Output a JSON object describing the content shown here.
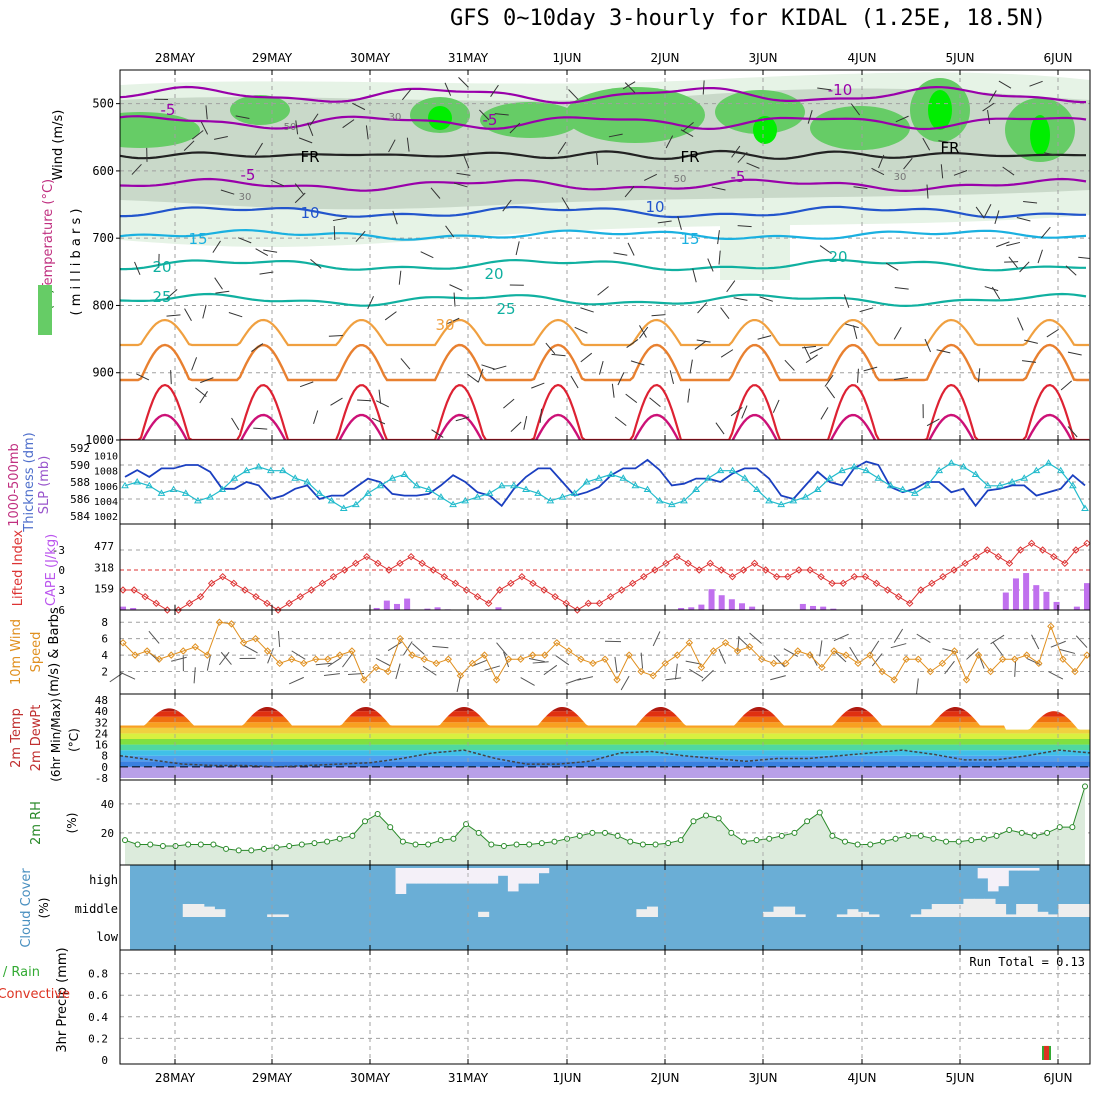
{
  "title": "GFS 0~10day 3-hourly for KIDAL (1.25E, 18.5N)",
  "dates": [
    "28MAY",
    "29MAY",
    "30MAY",
    "31MAY",
    "1JUN",
    "2JUN",
    "3JUN",
    "4JUN",
    "5JUN",
    "6JUN"
  ],
  "run_total_label": "Run Total = 0.13",
  "colors": {
    "grid": "#a0a0a0",
    "rh_light": "#e6f3e6",
    "rh_mid": "#c9d9c9",
    "rh_green": "#66cc66",
    "rh_bright": "#00ee00",
    "rh_dark": "#1a8a1a",
    "temp_neg": "#9900aa",
    "temp_cold": "#2255cc",
    "temp_cool": "#1ab0e0",
    "temp_mild": "#10b0a0",
    "temp_warm_y": "#f0a040",
    "temp_warm_o": "#e88030",
    "temp_hot": "#dd2233",
    "thickness": "#1a3fc0",
    "slp": "#22bbcc",
    "li": "#dd3333",
    "cape": "#c070ee",
    "wind10": "#e09020",
    "rh2m": "#2a8a2a",
    "cloud_sky": "#6aaed6",
    "cloud_white": "#eeeeee",
    "precip_total": "#33aa33",
    "precip_conv": "#dd3322"
  },
  "panels": {
    "upper": {
      "ylabel_wind": "Wind (m/s)",
      "ylabel_temp": "Temperature (°C)",
      "ylabel_rh": "RH (%)",
      "ylabel_mb": "( m i l l i b a r s )",
      "yticks": [
        "500",
        "600",
        "700",
        "800",
        "900",
        "1000"
      ],
      "contour_labels": [
        {
          "t": "-5"
        },
        {
          "t": "-5"
        },
        {
          "t": "-5"
        },
        {
          "t": "-5"
        },
        {
          "t": "-10"
        },
        {
          "t": "FR"
        },
        {
          "t": "FR"
        },
        {
          "t": "FR"
        },
        {
          "t": "10"
        },
        {
          "t": "10"
        },
        {
          "t": "15"
        },
        {
          "t": "15"
        },
        {
          "t": "20"
        },
        {
          "t": "20"
        },
        {
          "t": "20"
        },
        {
          "t": "25"
        },
        {
          "t": "25"
        },
        {
          "t": "30"
        },
        {
          "t": "50"
        },
        {
          "t": "30"
        },
        {
          "t": "50"
        },
        {
          "t": "30"
        },
        {
          "t": "30"
        }
      ]
    },
    "thick": {
      "ylabel1": "1000-500mb",
      "ylabel2": "Thickness (dm)",
      "ylabel3": "SLP (mb)",
      "yticks_left": [
        "592",
        "590",
        "588",
        "586",
        "584"
      ],
      "yticks_right": [
        "1010",
        "1008",
        "1006",
        "1004",
        "1002"
      ]
    },
    "li": {
      "ylabel1": "Lifted Index",
      "ylabel2": "CAPE (J/kg)",
      "yticks_left": [
        "-3",
        "0",
        "3",
        "6"
      ],
      "yticks_right": [
        "477",
        "318",
        "159"
      ]
    },
    "wind10": {
      "ylabel1": "10m Wind",
      "ylabel2": "Speed",
      "ylabel3": "(m/s) & Barbs",
      "yticks": [
        "8",
        "6",
        "4",
        "2"
      ]
    },
    "temp2m": {
      "ylabel1": "2m Temp",
      "ylabel2": "2m DewPt",
      "ylabel3": "(6hr Min/Max)",
      "ylabel4": "(°C)",
      "yticks": [
        "48",
        "40",
        "32",
        "24",
        "16",
        "8",
        "0",
        "-8"
      ]
    },
    "rh2m": {
      "ylabel1": "2m RH",
      "ylabel2": "(%)",
      "yticks": [
        "40",
        "20"
      ]
    },
    "cloud": {
      "ylabel1": "Cloud Cover",
      "ylabel2": "(%)",
      "yticks": [
        "high",
        "middle",
        "low"
      ]
    },
    "precip": {
      "ylabel1": "3hr Precip (mm)",
      "ylabel2": "Total / Rain",
      "ylabel3": "Convective",
      "yticks": [
        "0.8",
        "0.6",
        "0.4",
        "0.2",
        "0"
      ]
    }
  },
  "chart_data": {
    "type": "line",
    "title": "GFS 0~10day 3-hourly for KIDAL (1.25E, 18.5N)",
    "x": [
      "28MAY",
      "29MAY",
      "30MAY",
      "31MAY",
      "1JUN",
      "2JUN",
      "3JUN",
      "4JUN",
      "5JUN",
      "6JUN"
    ],
    "thickness_dm": [
      588.6,
      589.4,
      588.6,
      589.6,
      589.6,
      590.0,
      590.0,
      589.2,
      587.2,
      587.2,
      588.0,
      587.6,
      586.0,
      586.4,
      587.2,
      587.6,
      586.0,
      586.4,
      586.4,
      587.4,
      588.4,
      588.0,
      586.6,
      586.4,
      586.4,
      586.6,
      587.6,
      588.8,
      588.0,
      586.8,
      586.4,
      585.2,
      587.2,
      588.6,
      589.6,
      589.6,
      588.0,
      586.4,
      586.8,
      587.4,
      588.8,
      589.6,
      589.6,
      590.6,
      589.4,
      587.6,
      587.8,
      588.4,
      588.4,
      588.0,
      589.0,
      589.6,
      589.6,
      588.4,
      586.4,
      586.0,
      587.6,
      589.2,
      588.0,
      587.6,
      589.6,
      590.4,
      590.0,
      587.4,
      586.8,
      587.2,
      588.0,
      588.0,
      586.8,
      587.2,
      585.2,
      587.0,
      587.2,
      587.6,
      587.6,
      586.4,
      586.8,
      587.2,
      588.8,
      587.6
    ],
    "slp_mb": [
      1006,
      1006.5,
      1006,
      1005,
      1005.5,
      1005,
      1004,
      1004.5,
      1005.5,
      1007,
      1008,
      1008.5,
      1008,
      1008,
      1007,
      1006.5,
      1005,
      1004,
      1003,
      1003.5,
      1005,
      1006,
      1007,
      1007.5,
      1006,
      1005.5,
      1004.5,
      1003.5,
      1004,
      1004.5,
      1005,
      1006,
      1006,
      1005.5,
      1005,
      1004,
      1004.5,
      1005,
      1006.5,
      1007,
      1007.5,
      1007,
      1006,
      1005.5,
      1004,
      1003.5,
      1004,
      1005.5,
      1007,
      1008,
      1008,
      1007,
      1005.5,
      1004,
      1003.5,
      1004,
      1004.5,
      1005.5,
      1007,
      1008,
      1008.5,
      1008,
      1007,
      1006,
      1005.5,
      1005,
      1006,
      1008,
      1009,
      1008.5,
      1007.5,
      1006,
      1006,
      1006.5,
      1007,
      1008,
      1009,
      1008,
      1006,
      1003
    ],
    "lifted_index": [
      3,
      3,
      4,
      5,
      6,
      6,
      5,
      4,
      2,
      1,
      2,
      3,
      4,
      5,
      6,
      5,
      4,
      3,
      2,
      1,
      0,
      -1,
      -2,
      -1,
      0,
      -1,
      -2,
      -1,
      0,
      1,
      2,
      3,
      4,
      5,
      3,
      2,
      1,
      2,
      3,
      4,
      5,
      6,
      5,
      5,
      4,
      3,
      2,
      1,
      0,
      -1,
      -2,
      -1,
      0,
      -1,
      0,
      1,
      0,
      -1,
      0,
      1,
      1,
      0,
      0,
      1,
      2,
      2,
      1,
      1,
      2,
      3,
      4,
      5,
      3,
      2,
      1,
      0,
      -1,
      -2,
      -3,
      -2,
      -1,
      -3,
      -4,
      -3,
      -2,
      -1,
      -3,
      -4
    ],
    "cape_jkg": [
      25,
      15,
      0,
      0,
      0,
      0,
      0,
      0,
      0,
      0,
      0,
      0,
      0,
      0,
      0,
      0,
      0,
      0,
      0,
      0,
      0,
      0,
      0,
      0,
      0,
      15,
      70,
      45,
      85,
      0,
      10,
      20,
      5,
      0,
      0,
      0,
      0,
      20,
      0,
      0,
      0,
      0,
      0,
      0,
      0,
      0,
      0,
      0,
      0,
      0,
      0,
      0,
      0,
      0,
      0,
      15,
      20,
      40,
      155,
      110,
      80,
      50,
      25,
      0,
      0,
      0,
      0,
      45,
      30,
      25,
      10,
      0,
      0,
      0,
      0,
      0,
      0,
      0,
      0,
      0,
      0,
      0,
      0,
      0,
      0,
      0,
      0,
      130,
      235,
      275,
      185,
      135,
      60,
      0,
      25,
      200
    ],
    "wind10_ms": [
      5.5,
      4.0,
      4.5,
      3.5,
      4.0,
      4.5,
      5.0,
      4.0,
      8.0,
      7.8,
      5.5,
      6.0,
      4.5,
      3.0,
      3.5,
      3.0,
      3.5,
      3.5,
      4.0,
      4.5,
      1.0,
      2.5,
      2.0,
      6.0,
      4.0,
      3.5,
      3.0,
      3.5,
      1.5,
      3.0,
      4.0,
      1.0,
      3.5,
      3.5,
      4.0,
      4.0,
      5.5,
      4.5,
      3.5,
      3.0,
      3.5,
      1.0,
      4.0,
      2.0,
      1.5,
      3.0,
      4.0,
      5.5,
      2.5,
      4.5,
      5.5,
      4.5,
      5.0,
      3.5,
      3.0,
      3.0,
      4.5,
      4.0,
      2.5,
      4.5,
      4.0,
      3.0,
      4.0,
      2.0,
      1.0,
      3.5,
      3.5,
      2.0,
      3.0,
      4.5,
      1.0,
      4.0,
      2.0,
      3.5,
      3.5,
      4.0,
      3.0,
      7.5,
      3.5,
      2.0,
      4.0
    ],
    "temp2m_c": {
      "daily_max": [
        42,
        43,
        43,
        43,
        43,
        43,
        43,
        43,
        43,
        40
      ],
      "daily_min": [
        29,
        29,
        29,
        29,
        29,
        29,
        29,
        29,
        29,
        26
      ]
    },
    "dewpt2m_c": [
      8,
      5,
      2,
      1,
      1,
      0,
      1,
      2,
      3,
      6,
      10,
      12,
      6,
      2,
      2,
      4,
      10,
      11,
      8,
      6,
      4,
      6,
      6,
      8,
      10,
      12,
      9,
      5,
      5,
      8,
      12,
      10
    ],
    "rh2m_pct": [
      15,
      12,
      12,
      11,
      11,
      12,
      12,
      12,
      9,
      8,
      8,
      9,
      10,
      11,
      12,
      13,
      14,
      16,
      18,
      28,
      33,
      24,
      14,
      12,
      12,
      15,
      16,
      26,
      20,
      12,
      11,
      12,
      12,
      13,
      14,
      16,
      18,
      20,
      20,
      18,
      14,
      12,
      12,
      13,
      15,
      28,
      32,
      30,
      20,
      14,
      15,
      16,
      18,
      20,
      28,
      34,
      18,
      14,
      12,
      12,
      14,
      16,
      18,
      18,
      16,
      14,
      14,
      15,
      16,
      18,
      22,
      20,
      18,
      20,
      24,
      24,
      52
    ],
    "cloud_high": [
      0,
      0,
      0,
      0,
      0,
      0,
      0,
      0,
      0,
      0,
      0,
      0,
      0,
      0,
      0,
      0,
      0,
      0,
      0,
      0,
      0,
      0,
      0,
      0,
      0,
      0,
      1,
      0.6,
      0.6,
      0.6,
      0.6,
      0.6,
      0.6,
      0.6,
      0.6,
      0.6,
      0.3,
      0.9,
      0.6,
      0.6,
      0.2,
      0,
      0,
      0,
      0,
      0,
      0,
      0,
      0,
      0,
      0,
      0,
      0,
      0,
      0,
      0,
      0,
      0,
      0,
      0,
      0,
      0,
      0,
      0,
      0,
      0,
      0,
      0,
      0,
      0,
      0,
      0,
      0,
      0,
      0,
      0,
      0,
      0,
      0,
      0,
      0,
      0,
      0,
      0.4,
      0.9,
      0.7,
      0.1,
      0.1,
      0.1,
      0,
      0,
      0,
      0,
      0
    ],
    "cloud_middle": [
      0,
      0,
      0,
      0,
      0,
      0.5,
      0.5,
      0.4,
      0.3,
      0,
      0,
      0,
      0,
      0.1,
      0.1,
      0,
      0,
      0,
      0,
      0,
      0,
      0,
      0,
      0,
      0,
      0,
      0,
      0,
      0,
      0,
      0,
      0,
      0,
      0.2,
      0,
      0,
      0,
      0,
      0,
      0,
      0,
      0,
      0,
      0,
      0,
      0,
      0,
      0,
      0.3,
      0.4,
      0,
      0,
      0,
      0,
      0,
      0,
      0,
      0,
      0,
      0,
      0.2,
      0.4,
      0.4,
      0.1,
      0,
      0,
      0,
      0.1,
      0.3,
      0.2,
      0.1,
      0,
      0,
      0,
      0.1,
      0.3,
      0.5,
      0.5,
      0.5,
      0.7,
      0.7,
      0.7,
      0.5,
      0.1,
      0.5,
      0.5,
      0.2,
      0.1,
      0.5,
      0.5,
      0.5
    ],
    "precip_total_mm": [
      0.13
    ],
    "run_total_mm": 0.13
  }
}
